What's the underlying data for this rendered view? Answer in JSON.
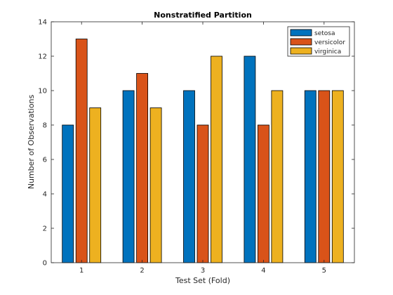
{
  "chart_data": {
    "type": "bar",
    "title": "Nonstratified Partition",
    "xlabel": "Test Set (Fold)",
    "ylabel": "Number of Observations",
    "categories": [
      "1",
      "2",
      "3",
      "4",
      "5"
    ],
    "ylim": [
      0,
      14
    ],
    "yticks": [
      "0",
      "2",
      "4",
      "6",
      "8",
      "10",
      "12",
      "14"
    ],
    "grid": false,
    "legend_position": "top-right",
    "series": [
      {
        "name": "setosa",
        "color": "#0072BD",
        "values": [
          8,
          10,
          10,
          12,
          10
        ]
      },
      {
        "name": "versicolor",
        "color": "#D95319",
        "values": [
          13,
          11,
          8,
          8,
          10
        ]
      },
      {
        "name": "virginica",
        "color": "#EDB120",
        "values": [
          9,
          9,
          12,
          10,
          10
        ]
      }
    ]
  }
}
